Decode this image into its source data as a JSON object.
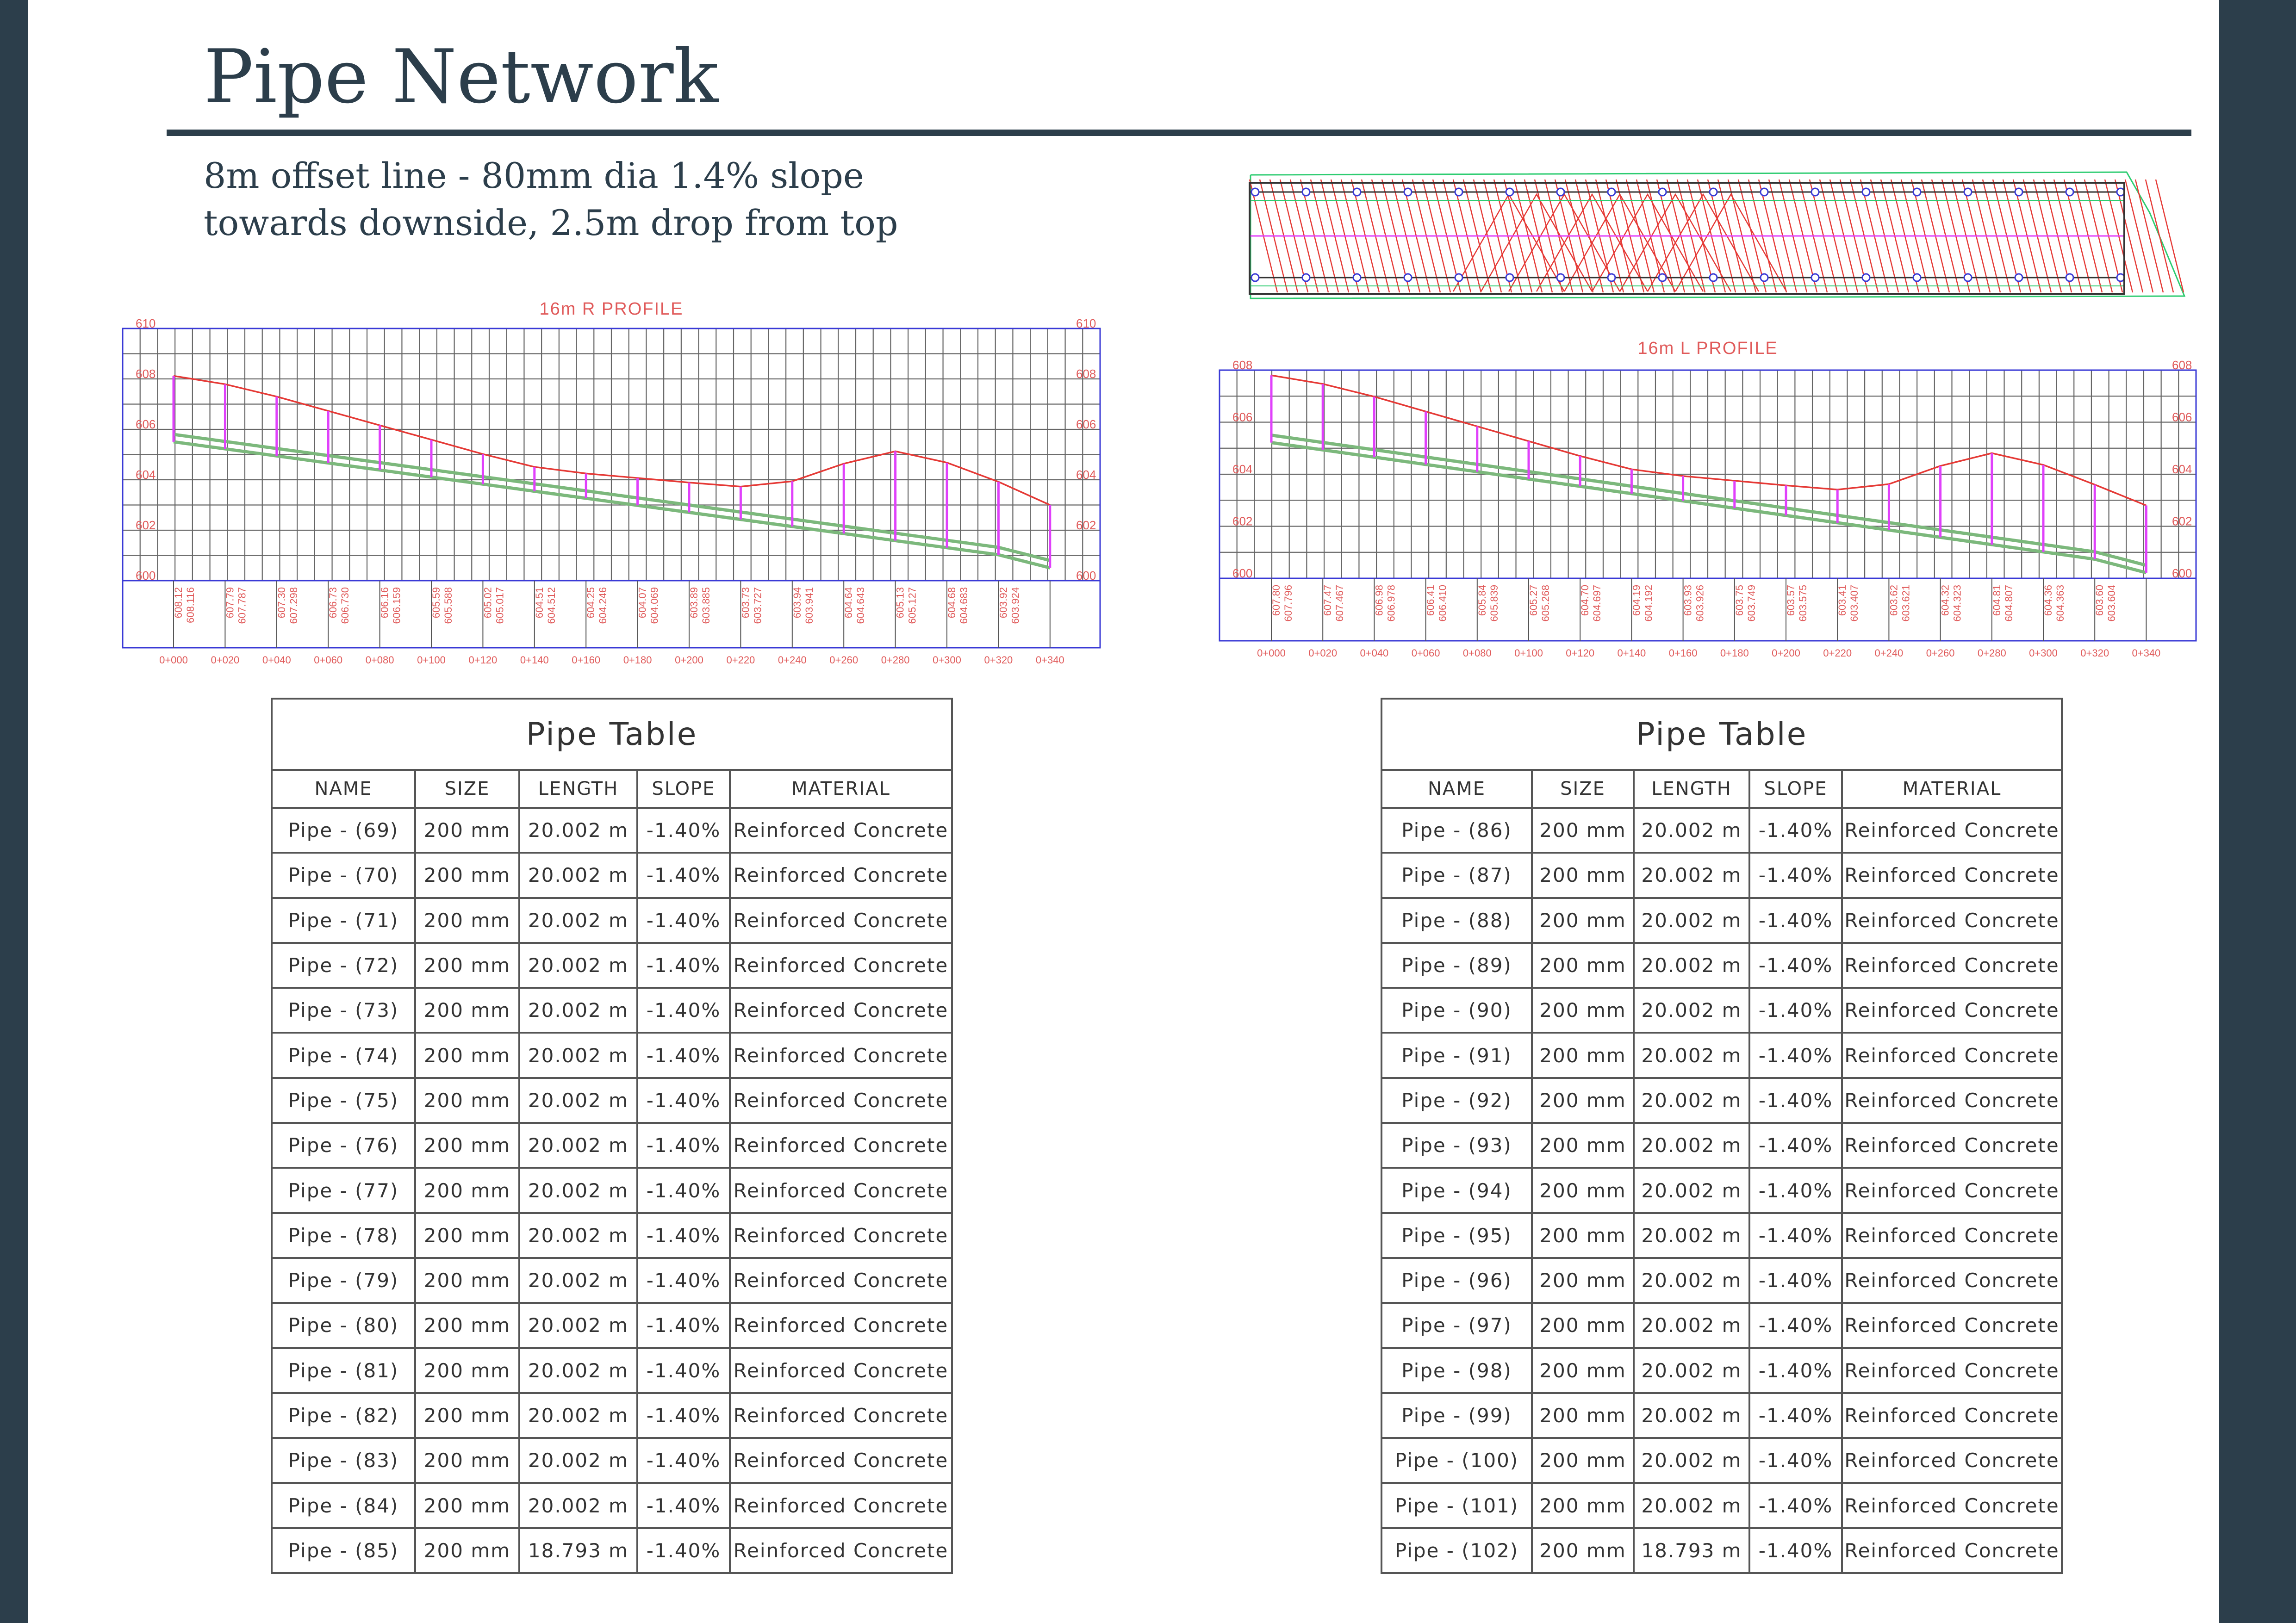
{
  "title": "Pipe Network",
  "subtitle_lines": [
    "8m offset line - 80mm dia 1.4% slope",
    "towards downside, 2.5m drop from top"
  ],
  "colors": {
    "background": "#2c3e4b",
    "sheet": "#ffffff",
    "title": "#2c3e4b",
    "profile_frame": "#3a3ad6",
    "profile_text": "#e05a5a",
    "ground_line": "#e53935",
    "pipe": "#7cb87c",
    "drops": "#e040fb",
    "plan_lines": "#e53935",
    "plan_boundary": "#2ecc71"
  },
  "profile_right": {
    "title": "16m  R  PROFILE",
    "y_labels": [
      "610",
      "608",
      "606",
      "604",
      "602",
      "600"
    ],
    "stations": [
      "0+000",
      "0+020",
      "0+040",
      "0+060",
      "0+080",
      "0+100",
      "0+120",
      "0+140",
      "0+160",
      "0+180",
      "0+200",
      "0+220",
      "0+240",
      "0+260",
      "0+280",
      "0+300",
      "0+320",
      "0+340"
    ],
    "ground_labels": [
      "608.12",
      "607.79",
      "607.30",
      "606.73",
      "606.16",
      "605.59",
      "605.02",
      "604.51",
      "604.25",
      "604.07",
      "603.89",
      "603.73",
      "603.94",
      "604.64",
      "605.13",
      "604.68",
      "603.92"
    ],
    "invert_labels": [
      "608.116",
      "607.787",
      "607.298",
      "606.730",
      "606.159",
      "605.588",
      "605.017",
      "604.512",
      "604.246",
      "604.069",
      "603.885",
      "603.727",
      "603.941",
      "604.643",
      "605.127",
      "604.683",
      "603.924"
    ],
    "ground_levels": [
      608.12,
      607.79,
      607.3,
      606.73,
      606.16,
      605.59,
      605.02,
      604.51,
      604.25,
      604.07,
      603.89,
      603.73,
      603.94,
      604.64,
      605.13,
      604.68,
      603.92,
      603.0
    ],
    "pipe_levels": [
      605.8,
      605.52,
      605.24,
      604.96,
      604.68,
      604.4,
      604.12,
      603.84,
      603.56,
      603.28,
      603.0,
      602.72,
      602.44,
      602.16,
      601.88,
      601.6,
      601.32,
      600.8
    ],
    "ylim": [
      600,
      610
    ]
  },
  "profile_left": {
    "title": "16m  L  PROFILE",
    "y_labels": [
      "608",
      "606",
      "604",
      "602",
      "600"
    ],
    "stations": [
      "0+000",
      "0+020",
      "0+040",
      "0+060",
      "0+080",
      "0+100",
      "0+120",
      "0+140",
      "0+160",
      "0+180",
      "0+200",
      "0+220",
      "0+240",
      "0+260",
      "0+280",
      "0+300",
      "0+320",
      "0+340"
    ],
    "ground_labels": [
      "607.80",
      "607.47",
      "606.98",
      "606.41",
      "605.84",
      "605.27",
      "604.70",
      "604.19",
      "603.93",
      "603.75",
      "603.57",
      "603.41",
      "603.62",
      "604.32",
      "604.81",
      "604.36",
      "603.60"
    ],
    "invert_labels": [
      "607.796",
      "607.467",
      "606.978",
      "606.410",
      "605.839",
      "605.268",
      "604.697",
      "604.192",
      "603.926",
      "603.749",
      "603.575",
      "603.407",
      "603.621",
      "604.323",
      "604.807",
      "604.363",
      "603.604"
    ],
    "ground_levels": [
      607.8,
      607.47,
      606.98,
      606.41,
      605.84,
      605.27,
      604.7,
      604.19,
      603.93,
      603.75,
      603.57,
      603.41,
      603.62,
      604.32,
      604.81,
      604.36,
      603.6,
      602.8
    ],
    "pipe_levels": [
      605.5,
      605.22,
      604.94,
      604.66,
      604.38,
      604.1,
      603.82,
      603.54,
      603.26,
      602.98,
      602.7,
      602.42,
      602.14,
      601.86,
      601.58,
      601.3,
      601.02,
      600.5
    ],
    "ylim": [
      600,
      608
    ]
  },
  "tables": [
    {
      "caption": "Pipe Table",
      "columns": [
        "NAME",
        "SIZE",
        "LENGTH",
        "SLOPE",
        "MATERIAL"
      ],
      "rows": [
        [
          "Pipe - (69)",
          "200 mm",
          "20.002 m",
          "-1.40%",
          "Reinforced Concrete"
        ],
        [
          "Pipe - (70)",
          "200 mm",
          "20.002 m",
          "-1.40%",
          "Reinforced Concrete"
        ],
        [
          "Pipe - (71)",
          "200 mm",
          "20.002 m",
          "-1.40%",
          "Reinforced Concrete"
        ],
        [
          "Pipe - (72)",
          "200 mm",
          "20.002 m",
          "-1.40%",
          "Reinforced Concrete"
        ],
        [
          "Pipe - (73)",
          "200 mm",
          "20.002 m",
          "-1.40%",
          "Reinforced Concrete"
        ],
        [
          "Pipe - (74)",
          "200 mm",
          "20.002 m",
          "-1.40%",
          "Reinforced Concrete"
        ],
        [
          "Pipe - (75)",
          "200 mm",
          "20.002 m",
          "-1.40%",
          "Reinforced Concrete"
        ],
        [
          "Pipe - (76)",
          "200 mm",
          "20.002 m",
          "-1.40%",
          "Reinforced Concrete"
        ],
        [
          "Pipe - (77)",
          "200 mm",
          "20.002 m",
          "-1.40%",
          "Reinforced Concrete"
        ],
        [
          "Pipe - (78)",
          "200 mm",
          "20.002 m",
          "-1.40%",
          "Reinforced Concrete"
        ],
        [
          "Pipe - (79)",
          "200 mm",
          "20.002 m",
          "-1.40%",
          "Reinforced Concrete"
        ],
        [
          "Pipe - (80)",
          "200 mm",
          "20.002 m",
          "-1.40%",
          "Reinforced Concrete"
        ],
        [
          "Pipe - (81)",
          "200 mm",
          "20.002 m",
          "-1.40%",
          "Reinforced Concrete"
        ],
        [
          "Pipe - (82)",
          "200 mm",
          "20.002 m",
          "-1.40%",
          "Reinforced Concrete"
        ],
        [
          "Pipe - (83)",
          "200 mm",
          "20.002 m",
          "-1.40%",
          "Reinforced Concrete"
        ],
        [
          "Pipe - (84)",
          "200 mm",
          "20.002 m",
          "-1.40%",
          "Reinforced Concrete"
        ],
        [
          "Pipe - (85)",
          "200 mm",
          "18.793 m",
          "-1.40%",
          "Reinforced Concrete"
        ]
      ]
    },
    {
      "caption": "Pipe Table",
      "columns": [
        "NAME",
        "SIZE",
        "LENGTH",
        "SLOPE",
        "MATERIAL"
      ],
      "rows": [
        [
          "Pipe - (86)",
          "200 mm",
          "20.002 m",
          "-1.40%",
          "Reinforced Concrete"
        ],
        [
          "Pipe - (87)",
          "200 mm",
          "20.002 m",
          "-1.40%",
          "Reinforced Concrete"
        ],
        [
          "Pipe - (88)",
          "200 mm",
          "20.002 m",
          "-1.40%",
          "Reinforced Concrete"
        ],
        [
          "Pipe - (89)",
          "200 mm",
          "20.002 m",
          "-1.40%",
          "Reinforced Concrete"
        ],
        [
          "Pipe - (90)",
          "200 mm",
          "20.002 m",
          "-1.40%",
          "Reinforced Concrete"
        ],
        [
          "Pipe - (91)",
          "200 mm",
          "20.002 m",
          "-1.40%",
          "Reinforced Concrete"
        ],
        [
          "Pipe - (92)",
          "200 mm",
          "20.002 m",
          "-1.40%",
          "Reinforced Concrete"
        ],
        [
          "Pipe - (93)",
          "200 mm",
          "20.002 m",
          "-1.40%",
          "Reinforced Concrete"
        ],
        [
          "Pipe - (94)",
          "200 mm",
          "20.002 m",
          "-1.40%",
          "Reinforced Concrete"
        ],
        [
          "Pipe - (95)",
          "200 mm",
          "20.002 m",
          "-1.40%",
          "Reinforced Concrete"
        ],
        [
          "Pipe - (96)",
          "200 mm",
          "20.002 m",
          "-1.40%",
          "Reinforced Concrete"
        ],
        [
          "Pipe - (97)",
          "200 mm",
          "20.002 m",
          "-1.40%",
          "Reinforced Concrete"
        ],
        [
          "Pipe - (98)",
          "200 mm",
          "20.002 m",
          "-1.40%",
          "Reinforced Concrete"
        ],
        [
          "Pipe - (99)",
          "200 mm",
          "20.002 m",
          "-1.40%",
          "Reinforced Concrete"
        ],
        [
          "Pipe - (100)",
          "200 mm",
          "20.002 m",
          "-1.40%",
          "Reinforced Concrete"
        ],
        [
          "Pipe - (101)",
          "200 mm",
          "20.002 m",
          "-1.40%",
          "Reinforced Concrete"
        ],
        [
          "Pipe - (102)",
          "200 mm",
          "18.793 m",
          "-1.40%",
          "Reinforced Concrete"
        ]
      ]
    }
  ]
}
